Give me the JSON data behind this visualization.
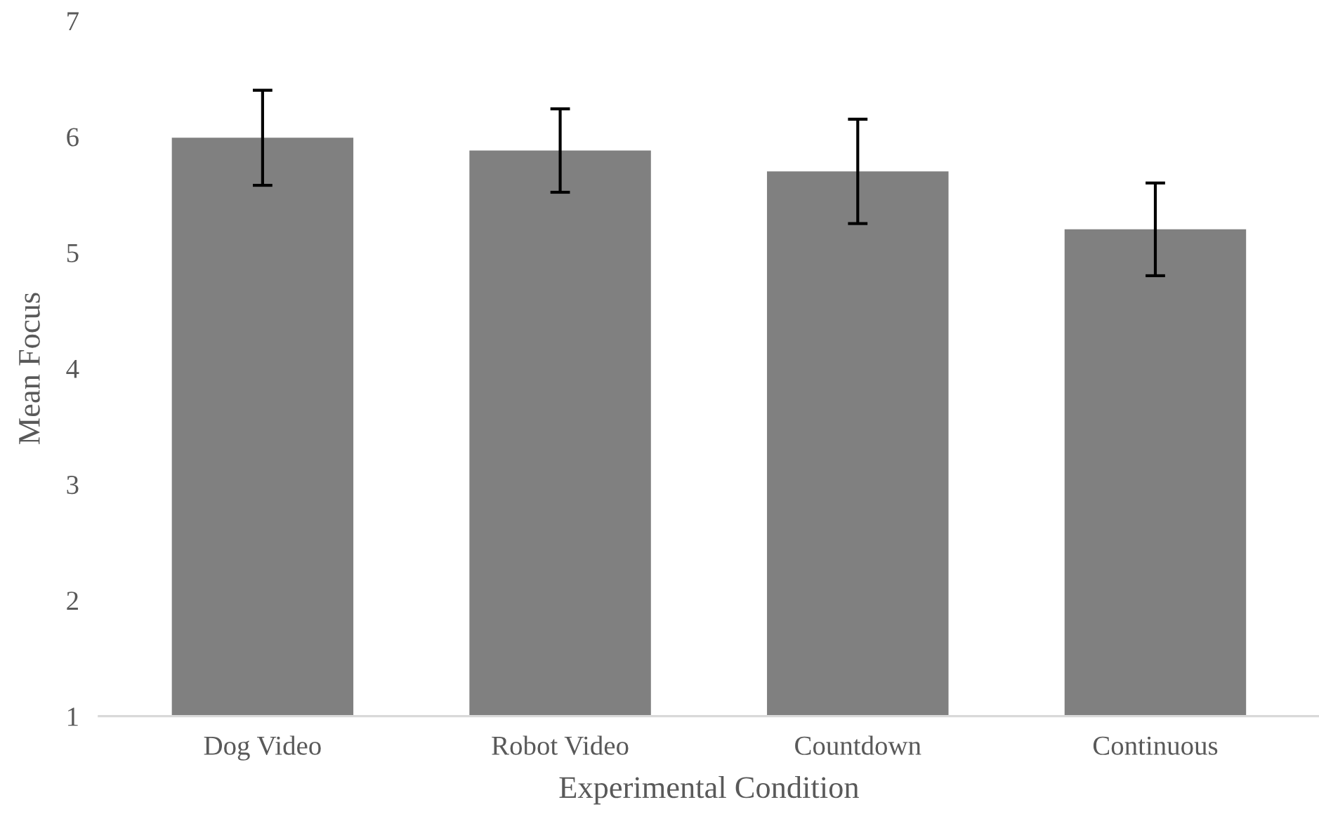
{
  "chart_data": {
    "type": "bar",
    "xlabel": "Experimental Condition",
    "ylabel": "Mean Focus",
    "categories": [
      "Dog Video",
      "Robot Video",
      "Countdown",
      "Continuous"
    ],
    "values": [
      5.99,
      5.88,
      5.7,
      5.2
    ],
    "errors": [
      0.41,
      0.36,
      0.45,
      0.4
    ],
    "color": "#808080",
    "ylim": [
      1,
      7
    ],
    "yticks": [
      1,
      2,
      3,
      4,
      5,
      6,
      7
    ],
    "grid": false,
    "legend": false
  }
}
